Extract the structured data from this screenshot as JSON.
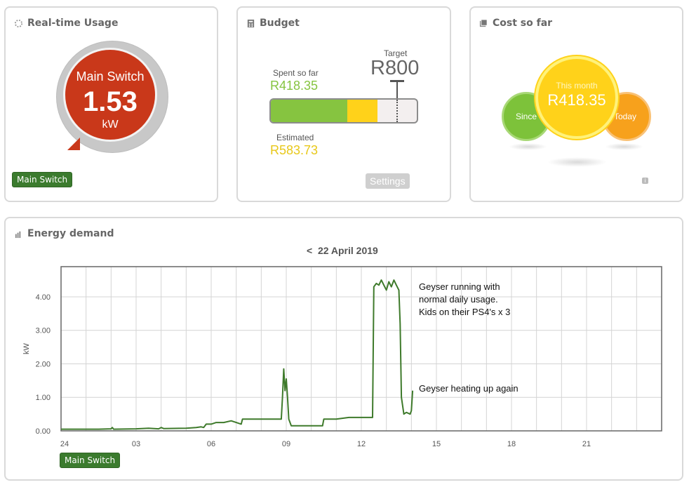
{
  "realtime": {
    "title": "Real-time Usage",
    "gauge_label": "Main Switch",
    "gauge_value": "1.53",
    "gauge_unit": "kW",
    "button": "Main Switch"
  },
  "budget": {
    "title": "Budget",
    "spent_label": "Spent so far",
    "spent_value": "R418.35",
    "target_label": "Target",
    "target_value": "R800",
    "estimated_label": "Estimated",
    "estimated_value": "R583.73",
    "settings_button": "Settings",
    "spent_fraction": 0.523,
    "estimated_fraction": 0.73,
    "colors": {
      "spent": "#86c440",
      "estimated": "#ffd21a"
    }
  },
  "cost": {
    "title": "Cost so far",
    "since_label": "Since",
    "month_label": "This month",
    "month_value": "R418.35",
    "today_label": "Today",
    "info_icon": "info-icon",
    "colors": {
      "since": "#7dc23a",
      "month": "#ffd21a",
      "today": "#f7a11c"
    }
  },
  "energy": {
    "title": "Energy demand",
    "date_nav": "<  22 April 2019",
    "button": "Main Switch",
    "annotation1": [
      "Geyser running with",
      "normal daily usage.",
      "Kids on their PS4's x 3"
    ],
    "annotation2": "Geyser heating up again"
  },
  "chart_data": {
    "type": "line",
    "title": "",
    "xlabel": "",
    "ylabel": "kW",
    "x_ticks": [
      "24",
      "03",
      "06",
      "09",
      "12",
      "15",
      "18",
      "21"
    ],
    "y_ticks": [
      "0.00",
      "1.00",
      "2.00",
      "3.00",
      "4.00"
    ],
    "xlim": [
      0,
      24
    ],
    "ylim": [
      0,
      4.9
    ],
    "grid": true,
    "series": [
      {
        "color": "#3e7a2b",
        "x": [
          0,
          1.5,
          2.0,
          2.05,
          2.1,
          3.0,
          3.5,
          3.9,
          4.0,
          4.1,
          5.0,
          5.4,
          5.6,
          5.7,
          5.8,
          6.0,
          6.2,
          6.5,
          6.8,
          7.0,
          7.2,
          7.25,
          8.0,
          8.8,
          8.85,
          8.9,
          8.95,
          9.0,
          9.05,
          9.1,
          9.15,
          9.2,
          9.5,
          10.0,
          10.45,
          10.5,
          11.0,
          11.5,
          12.0,
          12.45,
          12.5,
          12.6,
          12.7,
          12.8,
          12.9,
          13.0,
          13.1,
          13.2,
          13.3,
          13.4,
          13.5,
          13.55,
          13.6,
          13.7,
          13.8,
          13.95,
          14.0,
          14.05
        ],
        "y": [
          0.05,
          0.05,
          0.06,
          0.1,
          0.05,
          0.06,
          0.08,
          0.06,
          0.1,
          0.07,
          0.08,
          0.1,
          0.12,
          0.1,
          0.2,
          0.2,
          0.25,
          0.25,
          0.3,
          0.25,
          0.2,
          0.35,
          0.35,
          0.35,
          1.0,
          1.85,
          1.2,
          1.55,
          1.0,
          0.35,
          0.25,
          0.15,
          0.15,
          0.15,
          0.15,
          0.35,
          0.35,
          0.4,
          0.4,
          0.4,
          4.3,
          4.4,
          4.35,
          4.5,
          4.35,
          4.2,
          4.45,
          4.3,
          4.5,
          4.35,
          4.2,
          3.2,
          1.0,
          0.5,
          0.55,
          0.5,
          0.6,
          1.2
        ]
      }
    ]
  }
}
